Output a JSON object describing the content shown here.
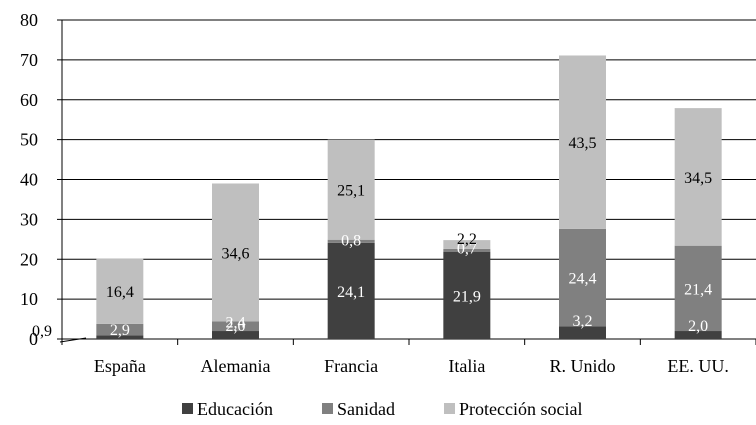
{
  "chart_data": {
    "type": "bar",
    "stacked": true,
    "categories": [
      "España",
      "Alemania",
      "Francia",
      "Italia",
      "R. Unido",
      "EE. UU."
    ],
    "series": [
      {
        "name": "Educación",
        "color": "#404040",
        "values": [
          0.9,
          2.0,
          24.1,
          21.9,
          3.2,
          2.0
        ],
        "labels": [
          "0,9",
          "2,0",
          "24,1",
          "21,9",
          "3,2",
          "2,0"
        ]
      },
      {
        "name": "Sanidad",
        "color": "#808080",
        "values": [
          2.9,
          2.4,
          0.8,
          0.7,
          24.4,
          21.4
        ],
        "labels": [
          "2,9",
          "2,4",
          "0,8",
          "0,7",
          "24,4",
          "21,4"
        ]
      },
      {
        "name": "Protección social",
        "color": "#bfbfbf",
        "values": [
          16.4,
          34.6,
          25.1,
          2.2,
          43.5,
          34.5
        ],
        "labels": [
          "16,4",
          "34,6",
          "25,1",
          "2,2",
          "43,5",
          "34,5"
        ]
      }
    ],
    "yticks": [
      "0",
      "10",
      "20",
      "30",
      "40",
      "50",
      "60",
      "70",
      "80"
    ],
    "ylim": [
      0,
      80
    ],
    "grid": true,
    "legend": "bottom",
    "title": "",
    "xlabel": "",
    "ylabel": ""
  }
}
